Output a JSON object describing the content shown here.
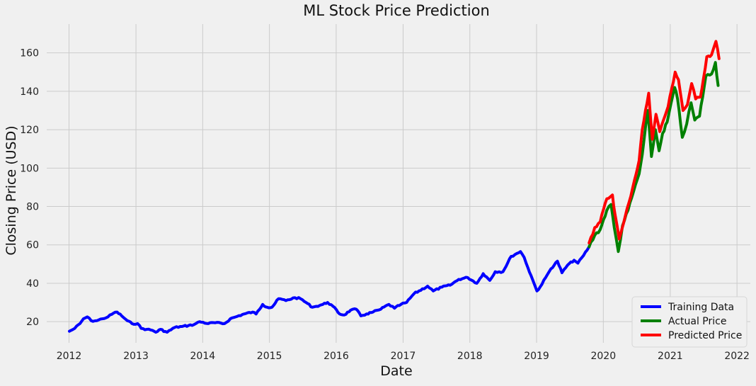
{
  "chart_data": {
    "type": "line",
    "title": "ML Stock Price Prediction",
    "xlabel": "Date",
    "ylabel": "Closing Price (USD)",
    "xlim": [
      "2011-09-01",
      "2022-03-15"
    ],
    "ylim": [
      9,
      175
    ],
    "x_ticks": [
      "2012",
      "2013",
      "2014",
      "2015",
      "2016",
      "2017",
      "2018",
      "2019",
      "2020",
      "2021",
      "2022"
    ],
    "y_ticks": [
      20,
      40,
      60,
      80,
      100,
      120,
      140,
      160
    ],
    "grid": true,
    "legend_position": "bottom-right",
    "series": [
      {
        "name": "Training Data",
        "color": "#0000ff",
        "points": [
          [
            "2012-01-03",
            15
          ],
          [
            "2012-02-01",
            16.5
          ],
          [
            "2012-03-01",
            19
          ],
          [
            "2012-03-20",
            21.5
          ],
          [
            "2012-04-10",
            22.5
          ],
          [
            "2012-05-01",
            20.5
          ],
          [
            "2012-06-01",
            20.5
          ],
          [
            "2012-07-01",
            21.5
          ],
          [
            "2012-08-01",
            22.5
          ],
          [
            "2012-09-01",
            24.5
          ],
          [
            "2012-09-20",
            25
          ],
          [
            "2012-10-15",
            23
          ],
          [
            "2012-11-15",
            20.5
          ],
          [
            "2012-12-10",
            19
          ],
          [
            "2013-01-10",
            19
          ],
          [
            "2013-01-30",
            16.5
          ],
          [
            "2013-03-01",
            16
          ],
          [
            "2013-04-01",
            15.5
          ],
          [
            "2013-04-20",
            14.5
          ],
          [
            "2013-05-15",
            16
          ],
          [
            "2013-06-20",
            14.5
          ],
          [
            "2013-08-01",
            17
          ],
          [
            "2013-09-10",
            17.5
          ],
          [
            "2013-10-15",
            18
          ],
          [
            "2013-11-15",
            18.5
          ],
          [
            "2013-12-15",
            20
          ],
          [
            "2014-02-01",
            19
          ],
          [
            "2014-03-01",
            19.5
          ],
          [
            "2014-05-01",
            19
          ],
          [
            "2014-06-01",
            21.5
          ],
          [
            "2014-07-01",
            22.5
          ],
          [
            "2014-08-15",
            24
          ],
          [
            "2014-10-01",
            25
          ],
          [
            "2014-10-20",
            24
          ],
          [
            "2014-11-25",
            29
          ],
          [
            "2014-12-20",
            27.5
          ],
          [
            "2015-01-15",
            27.5
          ],
          [
            "2015-02-20",
            32
          ],
          [
            "2015-04-01",
            31
          ],
          [
            "2015-05-20",
            32.5
          ],
          [
            "2015-06-20",
            32
          ],
          [
            "2015-07-20",
            30
          ],
          [
            "2015-08-24",
            27.5
          ],
          [
            "2015-09-15",
            28
          ],
          [
            "2015-10-20",
            29
          ],
          [
            "2015-11-15",
            30
          ],
          [
            "2015-12-15",
            28
          ],
          [
            "2016-01-20",
            24
          ],
          [
            "2016-02-15",
            23.5
          ],
          [
            "2016-03-20",
            26
          ],
          [
            "2016-04-20",
            26.5
          ],
          [
            "2016-05-15",
            23
          ],
          [
            "2016-06-15",
            24
          ],
          [
            "2016-07-20",
            25
          ],
          [
            "2016-09-01",
            26.5
          ],
          [
            "2016-10-15",
            29
          ],
          [
            "2016-11-15",
            27
          ],
          [
            "2016-12-20",
            29
          ],
          [
            "2017-01-20",
            30
          ],
          [
            "2017-03-01",
            34.5
          ],
          [
            "2017-05-15",
            38.5
          ],
          [
            "2017-06-15",
            36
          ],
          [
            "2017-08-01",
            38
          ],
          [
            "2017-09-15",
            39
          ],
          [
            "2017-11-01",
            42
          ],
          [
            "2017-12-20",
            43
          ],
          [
            "2018-02-08",
            40
          ],
          [
            "2018-03-15",
            45
          ],
          [
            "2018-04-20",
            41.5
          ],
          [
            "2018-05-20",
            46
          ],
          [
            "2018-07-01",
            46
          ],
          [
            "2018-08-15",
            54
          ],
          [
            "2018-09-15",
            55.5
          ],
          [
            "2018-10-05",
            56.5
          ],
          [
            "2018-10-25",
            53.5
          ],
          [
            "2018-11-15",
            48
          ],
          [
            "2018-12-10",
            42
          ],
          [
            "2019-01-03",
            36
          ],
          [
            "2019-01-20",
            38
          ],
          [
            "2019-02-20",
            43
          ],
          [
            "2019-03-20",
            47.5
          ],
          [
            "2019-04-25",
            51.5
          ],
          [
            "2019-05-20",
            45.5
          ],
          [
            "2019-06-20",
            49.5
          ],
          [
            "2019-07-25",
            52
          ],
          [
            "2019-08-15",
            50.5
          ],
          [
            "2019-09-15",
            54.5
          ],
          [
            "2019-10-15",
            59
          ]
        ]
      },
      {
        "name": "Actual Price",
        "color": "#008000",
        "points": [
          [
            "2019-10-15",
            59
          ],
          [
            "2019-11-15",
            65
          ],
          [
            "2019-12-15",
            68
          ],
          [
            "2020-01-20",
            78
          ],
          [
            "2020-02-12",
            81
          ],
          [
            "2020-03-01",
            69
          ],
          [
            "2020-03-23",
            56.5
          ],
          [
            "2020-04-15",
            70
          ],
          [
            "2020-05-15",
            78
          ],
          [
            "2020-06-15",
            88
          ],
          [
            "2020-07-15",
            97
          ],
          [
            "2020-08-01",
            107
          ],
          [
            "2020-08-31",
            130
          ],
          [
            "2020-09-20",
            106
          ],
          [
            "2020-10-12",
            120
          ],
          [
            "2020-11-01",
            109
          ],
          [
            "2020-11-20",
            118
          ],
          [
            "2020-12-15",
            124
          ],
          [
            "2021-01-25",
            142
          ],
          [
            "2021-02-10",
            136
          ],
          [
            "2021-03-08",
            116
          ],
          [
            "2021-04-01",
            123
          ],
          [
            "2021-04-25",
            134
          ],
          [
            "2021-05-15",
            125
          ],
          [
            "2021-06-10",
            127
          ],
          [
            "2021-07-15",
            148
          ],
          [
            "2021-08-15",
            149
          ],
          [
            "2021-09-05",
            155
          ],
          [
            "2021-09-20",
            143
          ]
        ]
      },
      {
        "name": "Predicted Price",
        "color": "#ff0000",
        "points": [
          [
            "2019-10-15",
            61
          ],
          [
            "2019-11-15",
            69
          ],
          [
            "2019-12-15",
            72
          ],
          [
            "2020-01-20",
            84
          ],
          [
            "2020-02-20",
            86
          ],
          [
            "2020-03-05",
            76
          ],
          [
            "2020-03-28",
            63
          ],
          [
            "2020-04-20",
            71
          ],
          [
            "2020-05-20",
            82
          ],
          [
            "2020-06-20",
            94
          ],
          [
            "2020-07-15",
            104
          ],
          [
            "2020-08-01",
            120
          ],
          [
            "2020-09-05",
            139
          ],
          [
            "2020-09-25",
            115
          ],
          [
            "2020-10-15",
            128
          ],
          [
            "2020-11-05",
            119
          ],
          [
            "2020-11-25",
            125
          ],
          [
            "2020-12-20",
            132
          ],
          [
            "2021-01-28",
            150
          ],
          [
            "2021-02-15",
            146
          ],
          [
            "2021-03-12",
            130
          ],
          [
            "2021-04-05",
            133
          ],
          [
            "2021-04-28",
            144
          ],
          [
            "2021-05-20",
            136
          ],
          [
            "2021-06-15",
            137
          ],
          [
            "2021-07-20",
            158
          ],
          [
            "2021-08-15",
            159
          ],
          [
            "2021-09-08",
            166
          ],
          [
            "2021-09-25",
            157
          ]
        ]
      }
    ]
  }
}
